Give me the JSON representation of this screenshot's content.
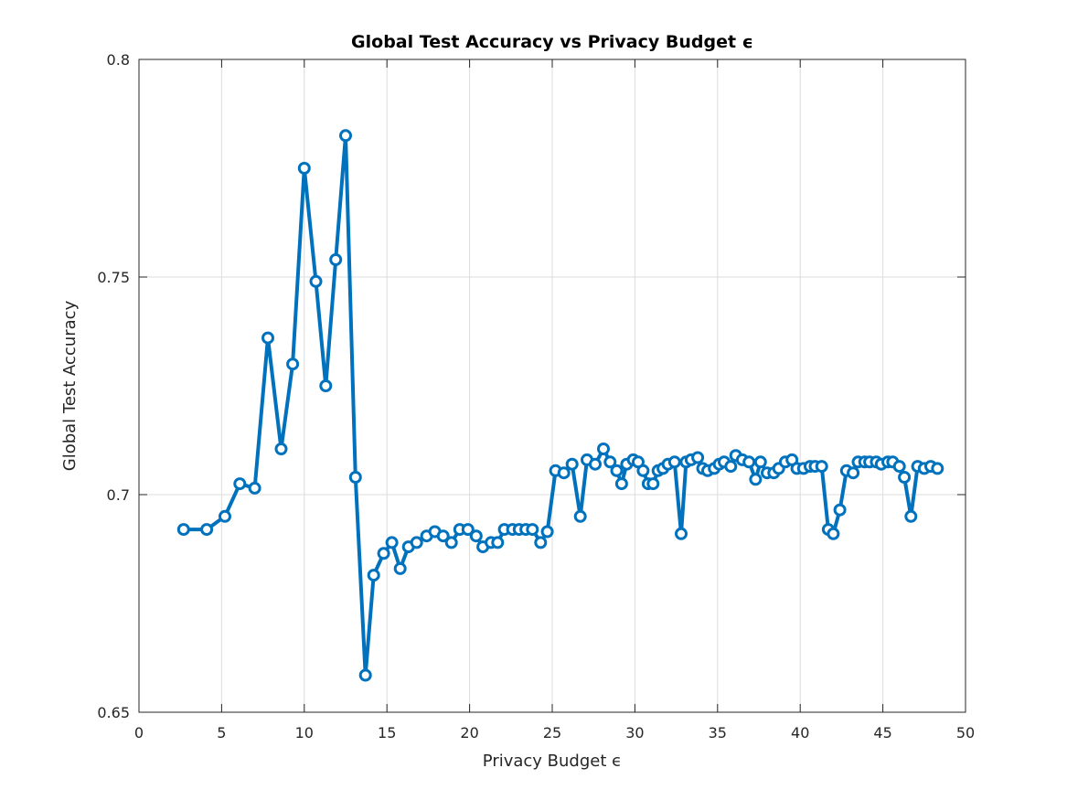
{
  "chart_data": {
    "type": "line",
    "title": "Global Test Accuracy vs Privacy Budget ϵ",
    "xlabel": "Privacy Budget ϵ",
    "ylabel": "Global Test Accuracy",
    "xlim": [
      0,
      50
    ],
    "ylim": [
      0.65,
      0.8
    ],
    "xticks": [
      0,
      5,
      10,
      15,
      20,
      25,
      30,
      35,
      40,
      45,
      50
    ],
    "xtick_labels": [
      "0",
      "5",
      "10",
      "15",
      "20",
      "25",
      "30",
      "35",
      "40",
      "45",
      "50"
    ],
    "yticks": [
      0.65,
      0.7,
      0.75,
      0.8
    ],
    "ytick_labels": [
      "0.65",
      "0.7",
      "0.75",
      "0.8"
    ],
    "grid": true,
    "line_color": "#0072BD",
    "marker": "circle",
    "series": [
      {
        "x": [
          2.7,
          4.1,
          5.2,
          6.1,
          7.0,
          7.8,
          8.6,
          9.3,
          10.0,
          10.7,
          11.3,
          11.9,
          12.5,
          13.1,
          13.7,
          14.2,
          14.8,
          15.3,
          15.8,
          16.3,
          16.8,
          17.4,
          17.9,
          18.4,
          18.9,
          19.4,
          19.9,
          20.4,
          20.8,
          21.3,
          21.7,
          22.1,
          22.6,
          23.0,
          23.4,
          23.8,
          24.3,
          24.7,
          25.2,
          25.7,
          26.2,
          26.7,
          27.1,
          27.6,
          28.1,
          28.5,
          28.9,
          29.2,
          29.5,
          29.9,
          30.2,
          30.5,
          30.8,
          31.1,
          31.4,
          31.7,
          32.0,
          32.4,
          32.8,
          33.1,
          33.4,
          33.8,
          34.1,
          34.4,
          34.8,
          35.1,
          35.4,
          35.8,
          36.1,
          36.5,
          36.9,
          37.3,
          37.6,
          38.0,
          38.4,
          38.7,
          39.1,
          39.5,
          39.8,
          40.2,
          40.6,
          40.9,
          41.3,
          41.7,
          42.0,
          42.4,
          42.8,
          43.2,
          43.5,
          43.9,
          44.2,
          44.6,
          44.9,
          45.3,
          45.6,
          46.0,
          46.3,
          46.7,
          47.1,
          47.5,
          47.9,
          48.3
        ],
        "y": [
          0.692,
          0.692,
          0.695,
          0.7025,
          0.7015,
          0.736,
          0.7105,
          0.73,
          0.775,
          0.749,
          0.725,
          0.754,
          0.7825,
          0.704,
          0.6585,
          0.6815,
          0.6865,
          0.689,
          0.683,
          0.688,
          0.689,
          0.6905,
          0.6915,
          0.6905,
          0.689,
          0.692,
          0.692,
          0.6905,
          0.688,
          0.689,
          0.689,
          0.692,
          0.692,
          0.692,
          0.692,
          0.692,
          0.689,
          0.6915,
          0.7055,
          0.705,
          0.707,
          0.695,
          0.708,
          0.707,
          0.7105,
          0.7075,
          0.7055,
          0.7025,
          0.707,
          0.708,
          0.7075,
          0.7055,
          0.7025,
          0.7025,
          0.7055,
          0.706,
          0.707,
          0.7075,
          0.691,
          0.7075,
          0.708,
          0.7085,
          0.706,
          0.7055,
          0.706,
          0.707,
          0.7075,
          0.7065,
          0.709,
          0.708,
          0.7075,
          0.7035,
          0.7075,
          0.705,
          0.705,
          0.706,
          0.7075,
          0.708,
          0.706,
          0.706,
          0.7065,
          0.7065,
          0.7065,
          0.692,
          0.691,
          0.6965,
          0.7055,
          0.705,
          0.7075,
          0.7075,
          0.7075,
          0.7075,
          0.707,
          0.7075,
          0.7075,
          0.7065,
          0.704,
          0.695,
          0.7065,
          0.706,
          0.7065,
          0.706
        ]
      }
    ]
  }
}
